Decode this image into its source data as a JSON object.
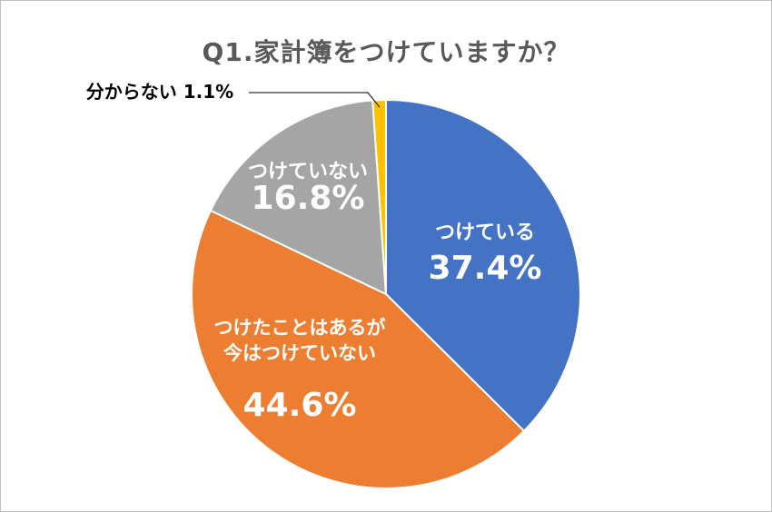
{
  "chart_data": {
    "type": "pie",
    "title": "Q1.家計簿をつけていますか？",
    "slices": [
      {
        "label": "つけている",
        "label_lines": [
          "つけている"
        ],
        "value": 37.4,
        "value_text": "37.4%",
        "color": "#4472C4"
      },
      {
        "label": "つけたことはあるが今はつけていない",
        "label_lines": [
          "つけたことはあるが",
          "今はつけていない"
        ],
        "value": 44.6,
        "value_text": "44.6%",
        "color": "#ED7D31"
      },
      {
        "label": "つけていない",
        "label_lines": [
          "つけていない"
        ],
        "value": 16.8,
        "value_text": "16.8%",
        "color": "#A5A5A5"
      },
      {
        "label": "分からない",
        "label_lines": [
          "分からない"
        ],
        "value": 1.1,
        "value_text": "1.1%",
        "color": "#FFC000"
      }
    ],
    "start_angle": "12 o'clock",
    "direction": "clockwise"
  }
}
